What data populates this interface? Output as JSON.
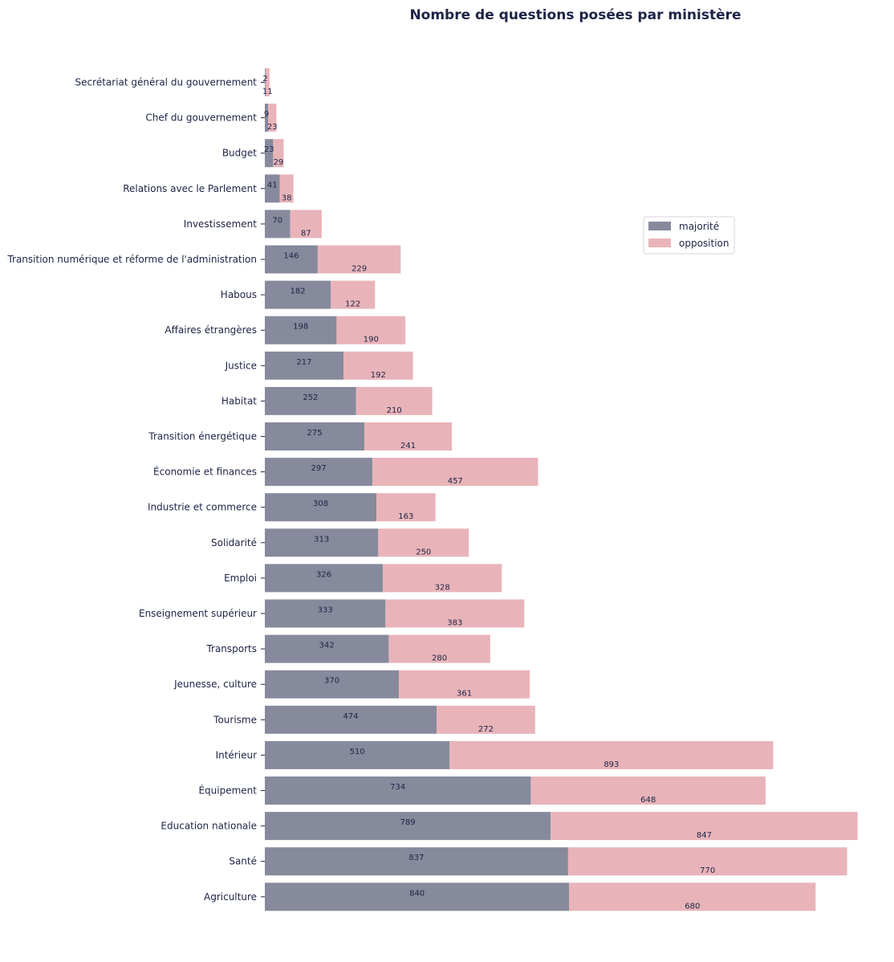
{
  "chart_data": {
    "type": "bar",
    "orientation": "horizontal",
    "stacked": true,
    "title": "Nombre de questions posées par ministère",
    "xlabel": "",
    "ylabel": "",
    "grid": false,
    "legend_position": "right",
    "categories": [
      "Secrétariat général du gouvernement",
      "Chef du gouvernement",
      "Budget",
      "Relations avec le Parlement",
      "Investissement",
      "Transition numérique et réforme de l'administration",
      "Habous",
      "Affaires étrangères",
      "Justice",
      "Habitat",
      "Transition énergétique",
      "Économie et finances",
      "Industrie et commerce",
      "Solidarité",
      "Emploi",
      "Enseignement supérieur",
      "Transports",
      "Jeunesse, culture",
      "Tourisme",
      "Intérieur",
      "Équipement",
      "Education nationale",
      "Santé",
      "Agriculture"
    ],
    "series": [
      {
        "name": "majorité",
        "color": "#878a9c",
        "values": [
          2,
          9,
          23,
          41,
          70,
          146,
          182,
          198,
          217,
          252,
          275,
          297,
          308,
          313,
          326,
          333,
          342,
          370,
          474,
          510,
          734,
          789,
          837,
          840
        ]
      },
      {
        "name": "opposition",
        "color": "#e8b4b9",
        "values": [
          11,
          23,
          29,
          38,
          87,
          229,
          122,
          190,
          192,
          210,
          241,
          457,
          163,
          250,
          328,
          383,
          280,
          361,
          272,
          893,
          648,
          847,
          770,
          680
        ]
      }
    ]
  }
}
